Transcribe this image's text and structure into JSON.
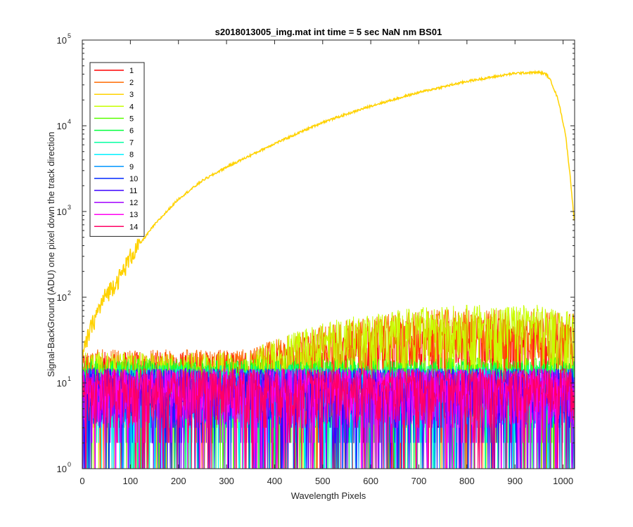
{
  "chart_data": {
    "type": "line",
    "title": "s2018013005_img.mat int time = 5 sec  NaN nm BS01",
    "xlabel": "Wavelength Pixels",
    "ylabel": "Signal-BackGround (ADU) one pixel down the track direction",
    "xlim": [
      0,
      1024
    ],
    "ylim": [
      1,
      100000
    ],
    "yscale": "log",
    "xticks": [
      "0",
      "100",
      "200",
      "300",
      "400",
      "500",
      "600",
      "700",
      "800",
      "900",
      "1000"
    ],
    "xtick_values": [
      0,
      100,
      200,
      300,
      400,
      500,
      600,
      700,
      800,
      900,
      1000
    ],
    "yticks": [
      {
        "base": "10",
        "exp": "0",
        "value": 1
      },
      {
        "base": "10",
        "exp": "1",
        "value": 10
      },
      {
        "base": "10",
        "exp": "2",
        "value": 100
      },
      {
        "base": "10",
        "exp": "3",
        "value": 1000
      },
      {
        "base": "10",
        "exp": "4",
        "value": 10000
      },
      {
        "base": "10",
        "exp": "5",
        "value": 100000
      }
    ],
    "grid": false,
    "legend_position": "top-left",
    "series": [
      {
        "name": "1",
        "color": "#ff0000",
        "profile": "noise-rising",
        "base": 14,
        "peak": 35
      },
      {
        "name": "2",
        "color": "#ff6a00",
        "profile": "noise-rising",
        "base": 15,
        "peak": 45
      },
      {
        "name": "3",
        "color": "#ffd200",
        "profile": "signal",
        "x": [
          0,
          15,
          30,
          50,
          80,
          100,
          150,
          200,
          250,
          300,
          400,
          500,
          600,
          700,
          800,
          900,
          950,
          965,
          975,
          990,
          1005,
          1015,
          1023
        ],
        "values": [
          20,
          40,
          65,
          110,
          180,
          300,
          700,
          1400,
          2300,
          3300,
          6200,
          11000,
          17000,
          24500,
          33000,
          41000,
          42000,
          40000,
          33000,
          20000,
          8000,
          2500,
          800
        ]
      },
      {
        "name": "4",
        "color": "#c8ff00",
        "profile": "noise-rising",
        "base": 14,
        "peak": 50
      },
      {
        "name": "5",
        "color": "#5aff00",
        "profile": "noise",
        "base": 12
      },
      {
        "name": "6",
        "color": "#00ff3c",
        "profile": "noise",
        "base": 11
      },
      {
        "name": "7",
        "color": "#00ffa0",
        "profile": "noise",
        "base": 10
      },
      {
        "name": "8",
        "color": "#00f0ff",
        "profile": "noise",
        "base": 9
      },
      {
        "name": "9",
        "color": "#0096ff",
        "profile": "noise",
        "base": 9
      },
      {
        "name": "10",
        "color": "#0028ff",
        "profile": "noise",
        "base": 9
      },
      {
        "name": "11",
        "color": "#3c00ff",
        "profile": "noise",
        "base": 9
      },
      {
        "name": "12",
        "color": "#a000ff",
        "profile": "noise",
        "base": 9
      },
      {
        "name": "13",
        "color": "#ff00f0",
        "profile": "noise",
        "base": 9
      },
      {
        "name": "14",
        "color": "#ff0064",
        "profile": "noise",
        "base": 9
      }
    ]
  }
}
